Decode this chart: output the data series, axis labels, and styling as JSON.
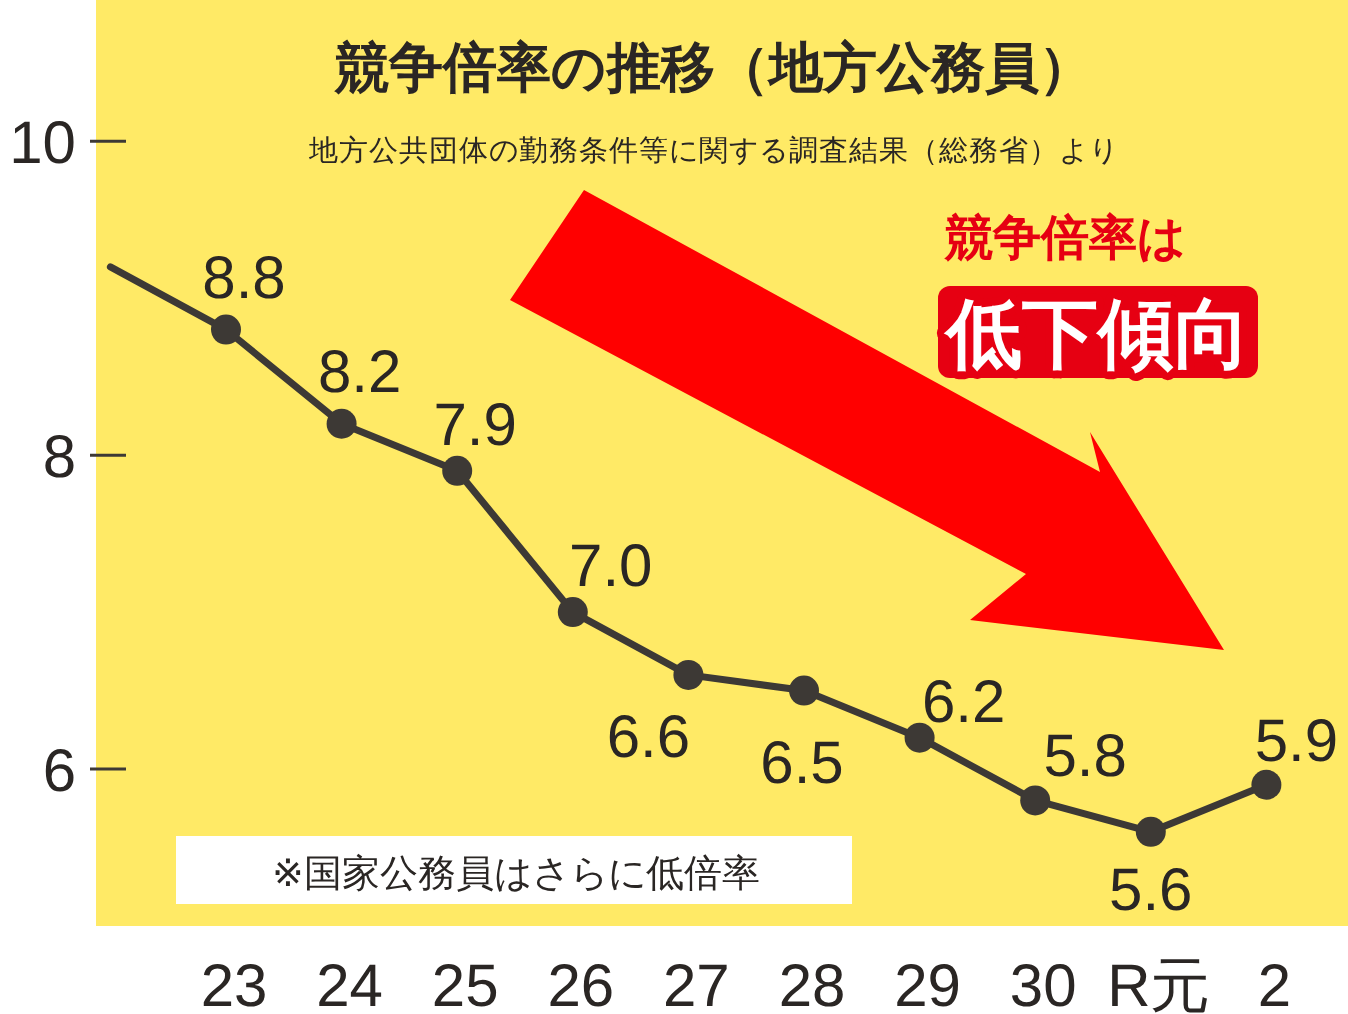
{
  "chart_data": {
    "type": "line",
    "title": "競争倍率の推移（地方公務員）",
    "subtitle": "地方公共団体の勤務条件等に関する調査結果（総務省）より",
    "categories": [
      null,
      "23",
      "24",
      "25",
      "26",
      "27",
      "28",
      "29",
      "30",
      "R元",
      "2"
    ],
    "values": [
      9.2,
      8.8,
      8.2,
      7.9,
      7.0,
      6.6,
      6.5,
      6.2,
      5.8,
      5.6,
      5.9
    ],
    "value_labels": [
      null,
      "8.8",
      "8.2",
      "7.9",
      "7.0",
      "6.6",
      "6.5",
      "6.2",
      "5.8",
      "5.6",
      "5.9"
    ],
    "color": "#3d3935",
    "marker": "circle",
    "line_style": "solid",
    "ylim": [
      5,
      10.9
    ],
    "yticks": [
      6,
      8,
      10
    ],
    "annotations": [
      "競争倍率は",
      "低下傾向",
      "※国家公務員はさらに低倍率"
    ]
  }
}
